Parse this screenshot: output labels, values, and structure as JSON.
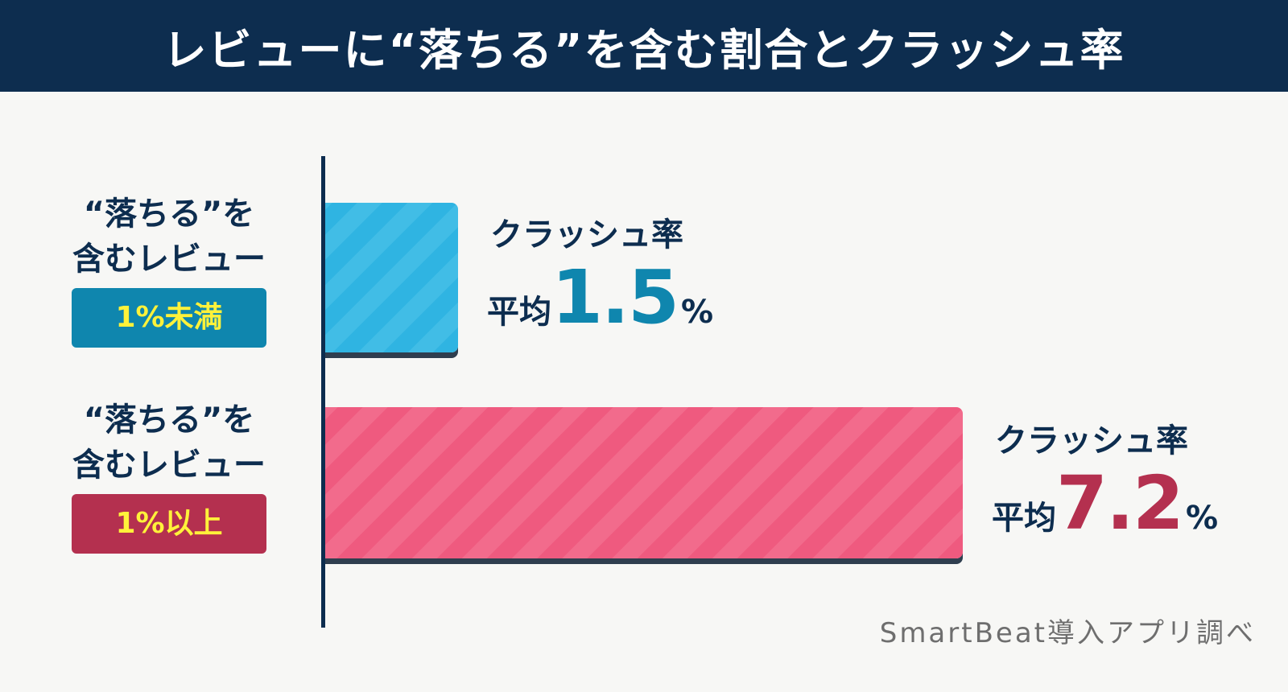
{
  "title": "レビューに“落ちる”を含む割合とクラッシュ率",
  "source": "SmartBeat導入アプリ調べ",
  "colors": {
    "header_bg": "#0d2d4f",
    "text": "#0d2d4f",
    "bar_low": "#2fb4e2",
    "bar_high": "#ef5a7f",
    "badge_low": "#0f86ae",
    "badge_high": "#b4304f",
    "badge_text": "#fff23a",
    "value_low": "#0f86ae",
    "value_high": "#b4304f"
  },
  "chart_data": {
    "type": "bar",
    "orientation": "horizontal",
    "title": "レビューに“落ちる”を含む割合とクラッシュ率",
    "value_label": "クラッシュ率",
    "categories": [
      {
        "label_line1": "“落ちる”を",
        "label_line2": "含むレビュー",
        "badge": "1%未満",
        "metric": "クラッシュ率",
        "avg_word": "平均",
        "value": 1.5,
        "value_text": "1.5",
        "unit": "%"
      },
      {
        "label_line1": "“落ちる”を",
        "label_line2": "含むレビュー",
        "badge": "1%以上",
        "metric": "クラッシュ率",
        "avg_word": "平均",
        "value": 7.2,
        "value_text": "7.2",
        "unit": "%"
      }
    ],
    "values": [
      1.5,
      7.2
    ],
    "xlim": [
      0,
      8.4
    ],
    "grid": false,
    "legend": "none"
  }
}
